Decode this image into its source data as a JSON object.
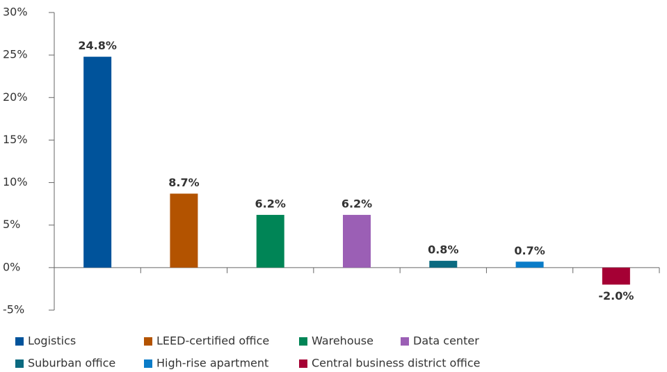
{
  "chart_data": {
    "type": "bar",
    "categories": [
      "Logistics",
      "LEED-certified office",
      "Warehouse",
      "Data center",
      "Suburban office",
      "High-rise apartment",
      "Central business district office"
    ],
    "values": [
      24.8,
      8.7,
      6.2,
      6.2,
      0.8,
      0.7,
      -2.0
    ],
    "value_labels": [
      "24.8%",
      "8.7%",
      "6.2%",
      "6.2%",
      "0.8%",
      "0.7%",
      "-2.0%"
    ],
    "colors": [
      "#00539b",
      "#b35300",
      "#008556",
      "#9b5fb5",
      "#0b6a80",
      "#0a7cc8",
      "#a50034"
    ],
    "ylim": [
      -5,
      30
    ],
    "yticks": [
      {
        "value": -5,
        "label": "-5%"
      },
      {
        "value": 0,
        "label": "0%"
      },
      {
        "value": 5,
        "label": "5%"
      },
      {
        "value": 10,
        "label": "10%"
      },
      {
        "value": 15,
        "label": "15%"
      },
      {
        "value": 20,
        "label": "20%"
      },
      {
        "value": 25,
        "label": "25%"
      },
      {
        "value": 30,
        "label": "30%"
      }
    ],
    "grid": false,
    "legend": "bottom"
  }
}
